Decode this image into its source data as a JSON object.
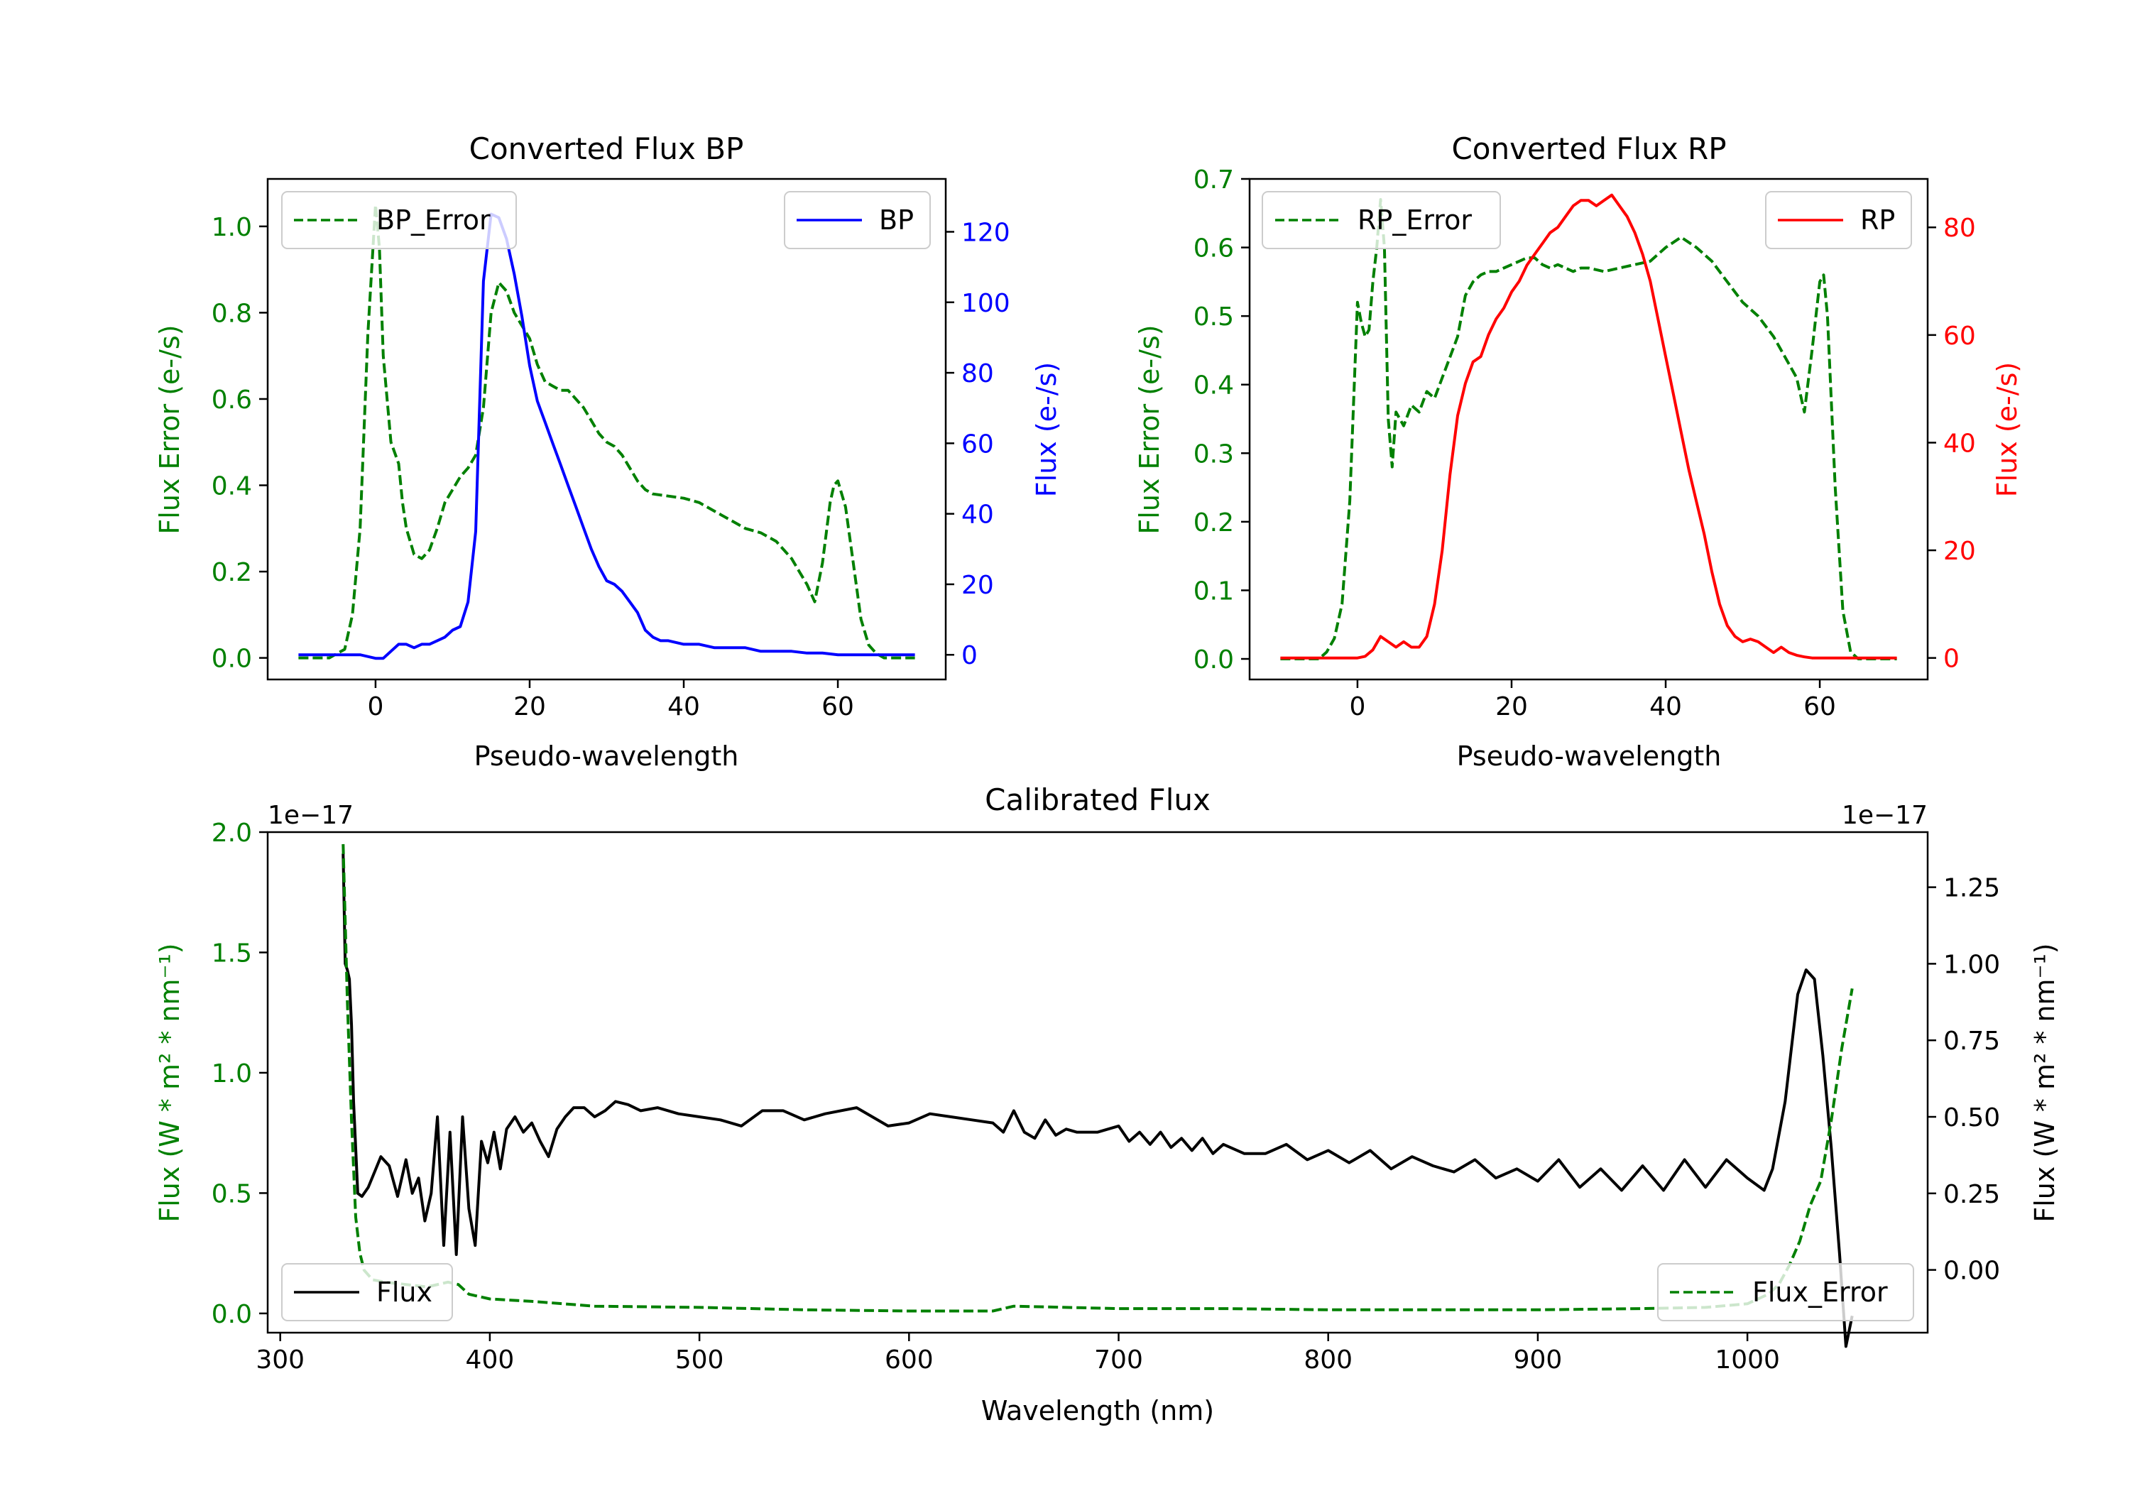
{
  "colors": {
    "green": "#008000",
    "blue": "#0000ff",
    "red": "#ff0000",
    "black": "#000000"
  },
  "chart_data": [
    {
      "id": "bp",
      "type": "line",
      "title": "Converted Flux BP",
      "xlabel": "Pseudo-wavelength",
      "ylabel_left": "Flux Error (e-/s)",
      "ylabel_right": "Flux (e-/s)",
      "xlim": [
        -14,
        74
      ],
      "ylim_left": [
        -0.05,
        1.11
      ],
      "ylim_right": [
        -7,
        135
      ],
      "xticks": [
        0,
        20,
        40,
        60
      ],
      "yticks_left": [
        0.0,
        0.2,
        0.4,
        0.6,
        0.8,
        1.0
      ],
      "yticks_left_labels": [
        "0.0",
        "0.2",
        "0.4",
        "0.6",
        "0.8",
        "1.0"
      ],
      "yticks_right": [
        0,
        20,
        40,
        60,
        80,
        100,
        120
      ],
      "yticks_right_labels": [
        "0",
        "20",
        "40",
        "60",
        "80",
        "100",
        "120"
      ],
      "legend_left": "top-left",
      "legend_right": "top-right",
      "series": [
        {
          "name": "BP_Error",
          "axis": "left",
          "style": "dashed",
          "color": "#008000",
          "x": [
            -10,
            -6,
            -4,
            -3,
            -2,
            -1,
            0,
            0.5,
            1,
            2,
            3,
            3.5,
            4,
            5,
            6,
            7,
            8,
            9,
            10,
            11,
            12,
            13,
            14,
            15,
            16,
            17,
            18,
            19,
            20,
            21,
            22,
            23,
            24,
            25,
            26,
            27,
            28,
            29,
            30,
            31,
            32,
            33,
            34,
            35,
            36,
            38,
            40,
            42,
            44,
            46,
            48,
            50,
            52,
            54,
            55,
            56,
            57,
            58,
            59,
            59.5,
            60,
            61,
            62,
            63,
            64,
            65,
            66,
            70
          ],
          "y": [
            0,
            0,
            0.02,
            0.1,
            0.3,
            0.75,
            1.05,
            0.95,
            0.7,
            0.5,
            0.45,
            0.36,
            0.3,
            0.24,
            0.23,
            0.25,
            0.3,
            0.36,
            0.39,
            0.42,
            0.44,
            0.47,
            0.58,
            0.8,
            0.87,
            0.85,
            0.8,
            0.77,
            0.74,
            0.68,
            0.64,
            0.63,
            0.62,
            0.62,
            0.6,
            0.58,
            0.55,
            0.52,
            0.5,
            0.49,
            0.47,
            0.44,
            0.41,
            0.39,
            0.38,
            0.375,
            0.37,
            0.36,
            0.34,
            0.32,
            0.3,
            0.29,
            0.27,
            0.23,
            0.2,
            0.17,
            0.13,
            0.22,
            0.36,
            0.4,
            0.41,
            0.35,
            0.22,
            0.09,
            0.03,
            0.01,
            0,
            0
          ]
        },
        {
          "name": "BP",
          "axis": "right",
          "style": "solid",
          "color": "#0000ff",
          "x": [
            -10,
            -6,
            -4,
            -2,
            0,
            1,
            2,
            3,
            4,
            5,
            6,
            7,
            8,
            9,
            10,
            11,
            12,
            13,
            14,
            15,
            16,
            17,
            18,
            19,
            20,
            21,
            22,
            23,
            24,
            25,
            26,
            27,
            28,
            29,
            30,
            31,
            32,
            33,
            34,
            35,
            36,
            37,
            38,
            40,
            42,
            44,
            46,
            48,
            50,
            52,
            54,
            56,
            58,
            60,
            62,
            66,
            70
          ],
          "y": [
            0,
            0,
            0,
            0,
            -1,
            -1,
            1,
            3,
            3,
            2,
            3,
            3,
            4,
            5,
            7,
            8,
            15,
            35,
            106,
            125,
            124,
            118,
            108,
            96,
            82,
            72,
            66,
            60,
            54,
            48,
            42,
            36,
            30,
            25,
            21,
            20,
            18,
            15,
            12,
            7,
            5,
            4,
            4,
            3,
            3,
            2,
            2,
            2,
            1,
            1,
            1,
            0.5,
            0.5,
            0,
            0,
            0,
            0
          ]
        }
      ]
    },
    {
      "id": "rp",
      "type": "line",
      "title": "Converted Flux RP",
      "xlabel": "Pseudo-wavelength",
      "ylabel_left": "Flux Error (e-/s)",
      "ylabel_right": "Flux (e-/s)",
      "xlim": [
        -14,
        74
      ],
      "ylim_left": [
        -0.03,
        0.7
      ],
      "ylim_right": [
        -4,
        89
      ],
      "xticks": [
        0,
        20,
        40,
        60
      ],
      "yticks_left": [
        0.0,
        0.1,
        0.2,
        0.3,
        0.4,
        0.5,
        0.6,
        0.7
      ],
      "yticks_left_labels": [
        "0.0",
        "0.1",
        "0.2",
        "0.3",
        "0.4",
        "0.5",
        "0.6",
        "0.7"
      ],
      "yticks_right": [
        0,
        20,
        40,
        60,
        80
      ],
      "yticks_right_labels": [
        "0",
        "20",
        "40",
        "60",
        "80"
      ],
      "legend_left": "top-left",
      "legend_right": "top-right",
      "series": [
        {
          "name": "RP_Error",
          "axis": "left",
          "style": "dashed",
          "color": "#008000",
          "x": [
            -10,
            -5,
            -4,
            -3,
            -2,
            -1,
            0,
            0.5,
            1,
            1.5,
            2,
            2.5,
            3,
            3.5,
            4,
            4.5,
            5,
            6,
            7,
            8,
            9,
            10,
            11,
            12,
            13,
            14,
            15,
            16,
            17,
            18,
            19,
            20,
            21,
            22,
            23,
            24,
            25,
            26,
            27,
            28,
            29,
            30,
            32,
            34,
            36,
            38,
            40,
            42,
            44,
            46,
            48,
            50,
            52,
            54,
            55,
            56,
            57,
            58,
            59,
            60,
            60.5,
            61,
            62,
            63,
            64,
            65,
            70
          ],
          "y": [
            0,
            0,
            0.01,
            0.03,
            0.08,
            0.23,
            0.52,
            0.49,
            0.47,
            0.48,
            0.55,
            0.6,
            0.67,
            0.6,
            0.35,
            0.28,
            0.36,
            0.34,
            0.37,
            0.36,
            0.39,
            0.38,
            0.41,
            0.44,
            0.47,
            0.53,
            0.55,
            0.56,
            0.565,
            0.565,
            0.57,
            0.575,
            0.58,
            0.585,
            0.585,
            0.575,
            0.57,
            0.575,
            0.57,
            0.565,
            0.57,
            0.57,
            0.565,
            0.57,
            0.575,
            0.58,
            0.6,
            0.615,
            0.6,
            0.58,
            0.55,
            0.52,
            0.5,
            0.47,
            0.45,
            0.43,
            0.41,
            0.36,
            0.45,
            0.55,
            0.56,
            0.5,
            0.25,
            0.07,
            0.01,
            0,
            0
          ]
        },
        {
          "name": "RP",
          "axis": "right",
          "style": "solid",
          "color": "#ff0000",
          "x": [
            -10,
            -5,
            0,
            1,
            2,
            3,
            4,
            5,
            6,
            7,
            8,
            9,
            10,
            11,
            12,
            13,
            14,
            15,
            16,
            17,
            18,
            19,
            20,
            21,
            22,
            23,
            24,
            25,
            26,
            27,
            28,
            29,
            30,
            31,
            32,
            33,
            34,
            35,
            36,
            37,
            38,
            39,
            40,
            41,
            42,
            43,
            44,
            45,
            46,
            47,
            48,
            49,
            50,
            51,
            52,
            53,
            54,
            55,
            56,
            57,
            58,
            59,
            60,
            62,
            66,
            70
          ],
          "y": [
            0,
            0,
            0,
            0.3,
            1.5,
            4,
            3,
            2,
            3,
            2,
            2,
            4,
            10,
            20,
            34,
            45,
            51,
            55,
            56,
            60,
            63,
            65,
            68,
            70,
            73,
            75,
            77,
            79,
            80,
            82,
            84,
            85,
            85,
            84,
            85,
            86,
            84,
            82,
            79,
            75,
            70,
            63,
            56,
            49,
            42,
            35,
            29,
            23,
            16,
            10,
            6,
            4,
            3,
            3.5,
            3,
            2,
            1,
            2,
            1,
            0.5,
            0.2,
            0,
            0,
            0,
            0,
            0
          ]
        }
      ]
    },
    {
      "id": "cal",
      "type": "line",
      "title": "Calibrated Flux",
      "xlabel": "Wavelength (nm)",
      "ylabel_left": "Flux (W * m² * nm⁻¹)",
      "ylabel_right": "Flux (W * m² * nm⁻¹)",
      "offset_left": "1e−17",
      "offset_right": "1e−17",
      "xlim": [
        294,
        1086
      ],
      "ylim_left": [
        -0.08,
        2.0
      ],
      "ylim_right": [
        -0.205,
        1.43
      ],
      "xticks": [
        300,
        400,
        500,
        600,
        700,
        800,
        900,
        1000
      ],
      "yticks_left": [
        0.0,
        0.5,
        1.0,
        1.5,
        2.0
      ],
      "yticks_left_labels": [
        "0.0",
        "0.5",
        "1.0",
        "1.5",
        "2.0"
      ],
      "yticks_right": [
        0.0,
        0.25,
        0.5,
        0.75,
        1.0,
        1.25
      ],
      "yticks_right_labels": [
        "0.00",
        "0.25",
        "0.50",
        "0.75",
        "1.00",
        "1.25"
      ],
      "legend_left": "bottom-left",
      "legend_right": "bottom-right",
      "series": [
        {
          "name": "Flux",
          "axis": "right",
          "style": "solid",
          "color": "#000000",
          "x": [
            330,
            331,
            332,
            333,
            334,
            335,
            337,
            339,
            342,
            345,
            348,
            352,
            356,
            360,
            363,
            366,
            369,
            372,
            375,
            378,
            381,
            384,
            387,
            390,
            393,
            396,
            399,
            402,
            405,
            408,
            412,
            416,
            420,
            424,
            428,
            432,
            436,
            440,
            445,
            450,
            455,
            460,
            466,
            472,
            480,
            490,
            500,
            510,
            520,
            530,
            540,
            550,
            560,
            575,
            590,
            600,
            610,
            620,
            630,
            640,
            645,
            650,
            655,
            660,
            665,
            670,
            675,
            680,
            690,
            700,
            705,
            710,
            715,
            720,
            725,
            730,
            735,
            740,
            745,
            750,
            760,
            770,
            780,
            790,
            800,
            810,
            820,
            830,
            840,
            850,
            860,
            870,
            880,
            890,
            900,
            910,
            920,
            930,
            940,
            950,
            960,
            970,
            980,
            990,
            1000,
            1008,
            1012,
            1018,
            1024,
            1028,
            1032,
            1036,
            1040,
            1044,
            1047,
            1050
          ],
          "y": [
            1.36,
            1.0,
            0.98,
            0.95,
            0.8,
            0.55,
            0.25,
            0.24,
            0.27,
            0.32,
            0.37,
            0.34,
            0.24,
            0.36,
            0.25,
            0.3,
            0.16,
            0.25,
            0.5,
            0.08,
            0.45,
            0.05,
            0.5,
            0.2,
            0.08,
            0.42,
            0.35,
            0.45,
            0.33,
            0.46,
            0.5,
            0.45,
            0.48,
            0.42,
            0.37,
            0.46,
            0.5,
            0.53,
            0.53,
            0.5,
            0.52,
            0.55,
            0.54,
            0.52,
            0.53,
            0.51,
            0.5,
            0.49,
            0.47,
            0.52,
            0.52,
            0.49,
            0.51,
            0.53,
            0.47,
            0.48,
            0.51,
            0.5,
            0.49,
            0.48,
            0.45,
            0.52,
            0.45,
            0.43,
            0.49,
            0.44,
            0.46,
            0.45,
            0.45,
            0.47,
            0.42,
            0.45,
            0.41,
            0.45,
            0.4,
            0.43,
            0.39,
            0.43,
            0.38,
            0.41,
            0.38,
            0.38,
            0.41,
            0.36,
            0.39,
            0.35,
            0.39,
            0.33,
            0.37,
            0.34,
            0.32,
            0.36,
            0.3,
            0.33,
            0.29,
            0.36,
            0.27,
            0.33,
            0.26,
            0.34,
            0.26,
            0.36,
            0.27,
            0.36,
            0.3,
            0.26,
            0.33,
            0.55,
            0.9,
            0.98,
            0.95,
            0.7,
            0.4,
            0.05,
            -0.25,
            -0.15
          ]
        },
        {
          "name": "Flux_Error",
          "axis": "left",
          "style": "dashed",
          "color": "#008000",
          "x": [
            330,
            332,
            334,
            336,
            338,
            340,
            344,
            350,
            360,
            370,
            380,
            385,
            390,
            400,
            420,
            450,
            500,
            550,
            600,
            640,
            650,
            700,
            750,
            800,
            850,
            900,
            950,
            980,
            1000,
            1010,
            1015,
            1020,
            1025,
            1030,
            1035,
            1040,
            1045,
            1050
          ],
          "y": [
            1.95,
            1.3,
            0.8,
            0.4,
            0.25,
            0.18,
            0.14,
            0.13,
            0.12,
            0.11,
            0.13,
            0.12,
            0.08,
            0.06,
            0.05,
            0.03,
            0.025,
            0.015,
            0.01,
            0.01,
            0.03,
            0.02,
            0.02,
            0.015,
            0.015,
            0.015,
            0.02,
            0.025,
            0.04,
            0.08,
            0.12,
            0.2,
            0.3,
            0.45,
            0.55,
            0.8,
            1.1,
            1.35
          ]
        }
      ]
    }
  ]
}
